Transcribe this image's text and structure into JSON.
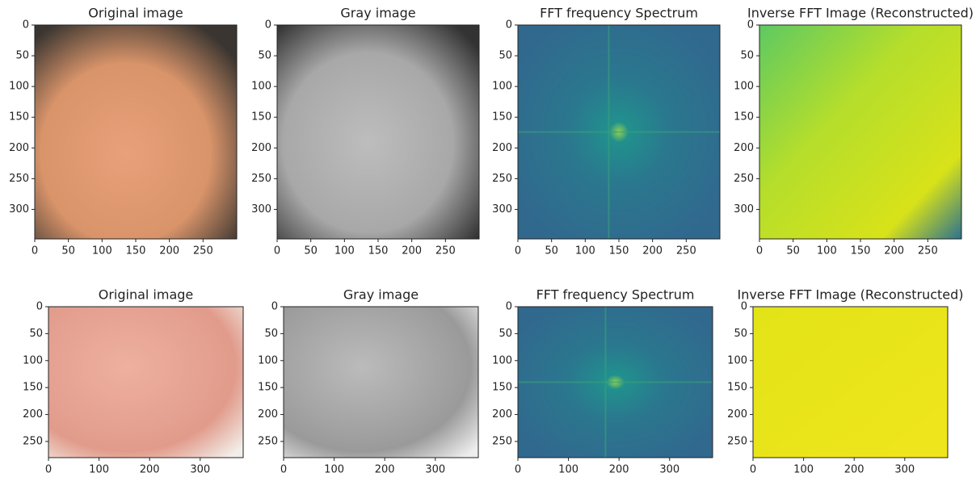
{
  "chart_data": [
    {
      "type": "image",
      "title": "Original image",
      "xlim": [
        0,
        300
      ],
      "ylim": [
        0,
        348
      ],
      "y_inverted": true,
      "xticks": [
        0,
        50,
        100,
        150,
        200,
        250
      ],
      "yticks": [
        0,
        50,
        100,
        150,
        200,
        250,
        300
      ]
    },
    {
      "type": "image",
      "title": "Gray image",
      "xlim": [
        0,
        300
      ],
      "ylim": [
        0,
        348
      ],
      "y_inverted": true,
      "xticks": [
        0,
        50,
        100,
        150,
        200,
        250
      ],
      "yticks": [
        0,
        50,
        100,
        150,
        200,
        250,
        300
      ]
    },
    {
      "type": "image",
      "title": "FFT frequency Spectrum",
      "xlim": [
        0,
        300
      ],
      "ylim": [
        0,
        348
      ],
      "y_inverted": true,
      "xticks": [
        0,
        50,
        100,
        150,
        200,
        250
      ],
      "yticks": [
        0,
        50,
        100,
        150,
        200,
        250,
        300
      ]
    },
    {
      "type": "image",
      "title": "Inverse FFT Image (Reconstructed)",
      "xlim": [
        0,
        300
      ],
      "ylim": [
        0,
        348
      ],
      "y_inverted": true,
      "xticks": [
        0,
        50,
        100,
        150,
        200,
        250
      ],
      "yticks": [
        0,
        50,
        100,
        150,
        200,
        250,
        300
      ]
    },
    {
      "type": "image",
      "title": "Original image",
      "xlim": [
        0,
        385
      ],
      "ylim": [
        0,
        280
      ],
      "y_inverted": true,
      "xticks": [
        0,
        100,
        200,
        300
      ],
      "yticks": [
        0,
        50,
        100,
        150,
        200,
        250
      ]
    },
    {
      "type": "image",
      "title": "Gray image",
      "xlim": [
        0,
        385
      ],
      "ylim": [
        0,
        280
      ],
      "y_inverted": true,
      "xticks": [
        0,
        100,
        200,
        300
      ],
      "yticks": [
        0,
        50,
        100,
        150,
        200,
        250
      ]
    },
    {
      "type": "image",
      "title": "FFT frequency Spectrum",
      "xlim": [
        0,
        385
      ],
      "ylim": [
        0,
        280
      ],
      "y_inverted": true,
      "xticks": [
        0,
        100,
        200,
        300
      ],
      "yticks": [
        0,
        50,
        100,
        150,
        200,
        250
      ]
    },
    {
      "type": "image",
      "title": "Inverse FFT Image (Reconstructed)",
      "xlim": [
        0,
        385
      ],
      "ylim": [
        0,
        280
      ],
      "y_inverted": true,
      "xticks": [
        0,
        100,
        200,
        300
      ],
      "yticks": [
        0,
        50,
        100,
        150,
        200,
        250
      ]
    }
  ]
}
